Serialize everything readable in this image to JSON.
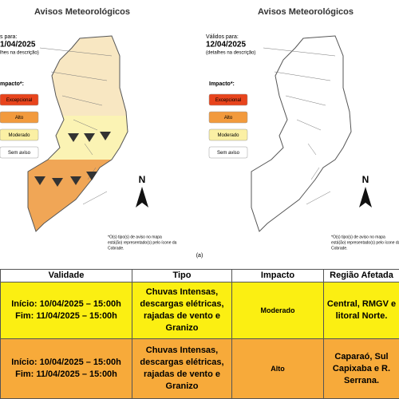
{
  "panels": [
    {
      "title": "Avisos Meteorológicos",
      "valid_label": "s para:",
      "date": "1/04/2025",
      "detail": "lhes na descrição)",
      "legend_title": "mpacto*:",
      "legend": [
        "Excepcional",
        "Alto",
        "Moderado",
        "Sem aviso"
      ],
      "north": "N",
      "footnote": [
        "*O(s) tipo(s) de aviso no mapa",
        "está(ão) representado(s) pelo ícone da",
        "Cobrade."
      ]
    },
    {
      "title": "Avisos Meteorológicos",
      "valid_label": "Válidos para:",
      "date": "12/04/2025",
      "detail": "(detalhes na descrição)",
      "legend_title": "Impacto*:",
      "legend": [
        "Excepcional",
        "Alto",
        "Moderado",
        "Sem aviso"
      ],
      "north": "N",
      "footnote": [
        "*O(s) tipo(s) de aviso no mapa",
        "está(ão) representado(s) pelo ícone da",
        "Cobrade."
      ]
    }
  ],
  "caption": "(a)",
  "table": {
    "headers": [
      "Validade",
      "Tipo",
      "Impacto",
      "Região Afetada"
    ],
    "rows": [
      {
        "validity": [
          "Início: 10/04/2025 – 15:00h",
          "Fim: 11/04/2025 – 15:00h"
        ],
        "type": [
          "Chuvas Intensas,",
          "descargas elétricas,",
          "rajadas de vento e",
          "Granizo"
        ],
        "impact": "Moderado",
        "region": [
          "Central, RMGV e",
          "litoral Norte."
        ]
      },
      {
        "validity": [
          "Início: 10/04/2025 – 15:00h",
          "Fim: 11/04/2025 – 15:00h"
        ],
        "type": [
          "Chuvas Intensas,",
          "descargas elétricas,",
          "rajadas de vento e",
          "Granizo"
        ],
        "impact": "Alto",
        "region": [
          "Caparaó, Sul",
          "Capixaba e R.",
          "Serrana."
        ]
      }
    ]
  }
}
